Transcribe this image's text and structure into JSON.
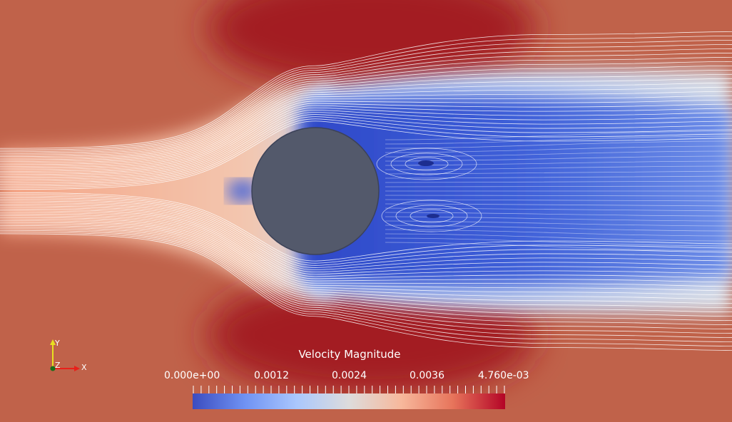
{
  "legend": {
    "title": "Velocity Magnitude",
    "ticks": [
      "0.000e+00",
      "0.0012",
      "0.0024",
      "0.0036",
      "4.760e-03"
    ],
    "colormap": [
      "#3b4cc0",
      "#6f92f3",
      "#aac7fd",
      "#dddcdc",
      "#f7b89c",
      "#e7745b",
      "#b40426"
    ]
  },
  "axes": {
    "x_label": "X",
    "y_label": "Y",
    "z_label": "Z",
    "x_color": "#e8201a",
    "y_color": "#e8e020",
    "z_color": "#1a6e1a"
  },
  "scene": {
    "obstacle_color": "#53596b",
    "inlet_color": "#f3a083",
    "far_field_color": "#c0624a",
    "accel_color": "#a51c22",
    "wake_color": "#3d5dd6"
  }
}
